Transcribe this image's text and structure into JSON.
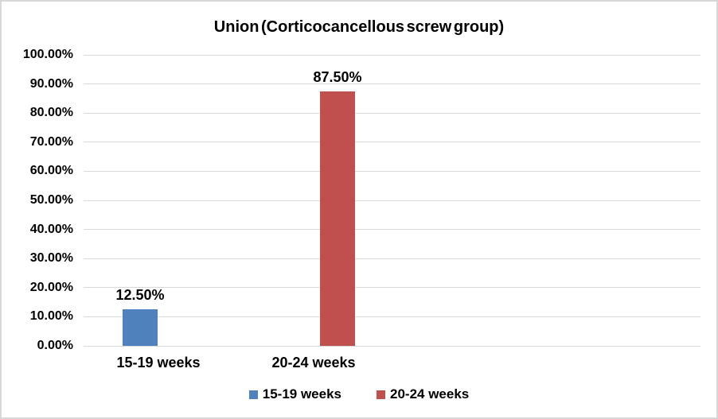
{
  "chart_data": {
    "type": "bar",
    "title": "Union (Corticocancellous screw group)",
    "categories": [
      "15-19 weeks",
      "20-24 weeks"
    ],
    "series": [
      {
        "name": "15-19 weeks",
        "color": "#4F81BD",
        "values": [
          12.5,
          null
        ]
      },
      {
        "name": "20-24 weeks",
        "color": "#C0504D",
        "values": [
          null,
          87.5
        ]
      }
    ],
    "bars": [
      {
        "category": "15-19 weeks",
        "value": 12.5,
        "label": "12.50%",
        "color": "#4F81BD"
      },
      {
        "category": "20-24 weeks",
        "value": 87.5,
        "label": "87.50%",
        "color": "#C0504D"
      }
    ],
    "xlabel": "",
    "ylabel": "",
    "ylim": [
      0,
      100
    ],
    "yticks": [
      "100.00%",
      "90.00%",
      "80.00%",
      "70.00%",
      "60.00%",
      "50.00%",
      "40.00%",
      "30.00%",
      "20.00%",
      "10.00%",
      "0.00%"
    ],
    "ytick_values": [
      100,
      90,
      80,
      70,
      60,
      50,
      40,
      30,
      20,
      10,
      0
    ],
    "grid": "horizontal",
    "legend_position": "bottom",
    "legend": [
      {
        "label": "15-19 weeks",
        "color": "#4F81BD"
      },
      {
        "label": "20-24 weeks",
        "color": "#C0504D"
      }
    ],
    "colors": {
      "gridline": "#D9D9D9",
      "axis_line": "#D9D9D9",
      "frame_border": "#D7D7D7",
      "background": "#FFFFFF",
      "text": "#000000"
    }
  }
}
